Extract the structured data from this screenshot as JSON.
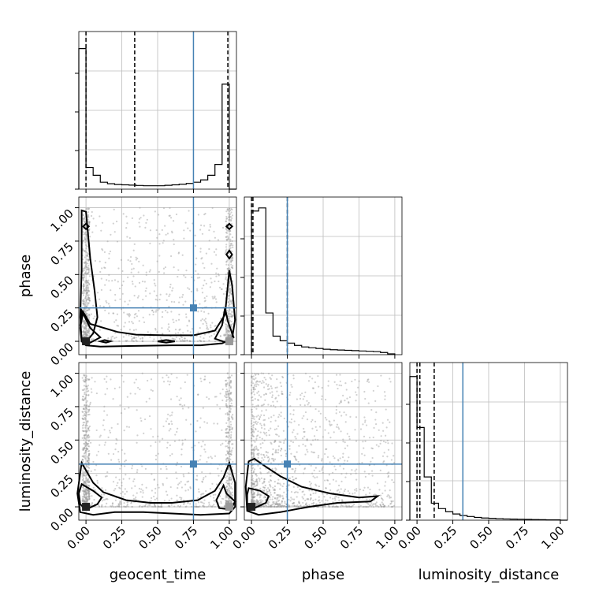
{
  "chart_data": {
    "type": "corner",
    "parameters": [
      "geocent_time",
      "phase",
      "luminosity_distance"
    ],
    "injection_color": "#4682b4",
    "truths": {
      "geocent_time": 0.75,
      "phase": 0.25,
      "luminosity_distance": 0.32
    },
    "tick_values": [
      0.0,
      0.25,
      0.5,
      0.75,
      1.0
    ],
    "tick_labels": [
      "0.00",
      "0.25",
      "0.50",
      "0.75",
      "1.00"
    ],
    "xlim": [
      -0.05,
      1.05
    ],
    "grid": true,
    "diagonal": [
      {
        "param": "geocent_time",
        "hist_edges": [
          -0.05,
          0.0,
          0.05,
          0.1,
          0.15,
          0.2,
          0.25,
          0.3,
          0.35,
          0.4,
          0.45,
          0.5,
          0.55,
          0.6,
          0.65,
          0.7,
          0.75,
          0.8,
          0.85,
          0.9,
          0.95,
          1.0,
          1.05
        ],
        "hist_counts": [
          0.91,
          0.14,
          0.09,
          0.045,
          0.035,
          0.03,
          0.028,
          0.026,
          0.024,
          0.022,
          0.022,
          0.022,
          0.025,
          0.028,
          0.032,
          0.037,
          0.045,
          0.06,
          0.09,
          0.16,
          0.68,
          0.0
        ],
        "ylim": [
          0,
          1.0
        ],
        "quantiles": [
          0.0,
          0.34,
          0.99
        ]
      },
      {
        "param": "phase",
        "hist_edges": [
          0.0,
          0.05,
          0.1,
          0.15,
          0.2,
          0.25,
          0.3,
          0.35,
          0.4,
          0.45,
          0.5,
          0.55,
          0.6,
          0.65,
          0.7,
          0.75,
          0.8,
          0.85,
          0.9,
          0.95,
          1.0
        ],
        "hist_counts": [
          0.93,
          0.95,
          0.27,
          0.12,
          0.09,
          0.075,
          0.06,
          0.05,
          0.045,
          0.04,
          0.035,
          0.032,
          0.03,
          0.028,
          0.026,
          0.024,
          0.022,
          0.02,
          0.014,
          0.005
        ],
        "ylim": [
          0,
          1.0
        ],
        "quantiles": [
          0.0,
          0.01,
          0.25
        ]
      },
      {
        "param": "luminosity_distance",
        "hist_edges": [
          -0.05,
          0.0,
          0.05,
          0.1,
          0.15,
          0.2,
          0.25,
          0.3,
          0.35,
          0.4,
          0.45,
          0.5,
          0.55,
          0.6,
          0.65,
          0.7,
          0.75,
          0.8,
          0.85,
          0.9,
          0.95,
          1.0,
          1.05
        ],
        "hist_counts": [
          0.93,
          0.6,
          0.28,
          0.11,
          0.075,
          0.055,
          0.04,
          0.03,
          0.024,
          0.018,
          0.014,
          0.012,
          0.01,
          0.008,
          0.007,
          0.006,
          0.005,
          0.004,
          0.003,
          0.002,
          0.002,
          0.0
        ],
        "ylim": [
          0,
          1.0
        ],
        "quantiles": [
          0.0,
          0.02,
          0.12
        ]
      }
    ],
    "scatter_panels": [
      {
        "x": "geocent_time",
        "y": "phase",
        "ylim": [
          -0.1,
          1.08
        ],
        "markers": [
          {
            "x": 0.0,
            "y": 0.0,
            "color": "#222222"
          },
          {
            "x": 1.0,
            "y": 0.0,
            "color": "#999999"
          }
        ],
        "contours": [
          [
            [
              -0.03,
              0.98
            ],
            [
              0.0,
              0.97
            ],
            [
              0.03,
              0.62
            ],
            [
              0.06,
              0.38
            ],
            [
              0.08,
              0.18
            ],
            [
              0.05,
              0.06
            ],
            [
              0.02,
              0.02
            ],
            [
              -0.03,
              0.01
            ],
            [
              -0.04,
              0.18
            ],
            [
              -0.03,
              0.54
            ],
            [
              -0.03,
              0.98
            ]
          ],
          [
            [
              -0.02,
              0.22
            ],
            [
              0.03,
              0.13
            ],
            [
              0.22,
              0.07
            ],
            [
              0.35,
              0.05
            ],
            [
              0.55,
              0.045
            ],
            [
              0.75,
              0.045
            ],
            [
              0.9,
              0.08
            ],
            [
              0.97,
              0.2
            ],
            [
              0.99,
              0.42
            ],
            [
              1.0,
              0.53
            ],
            [
              1.02,
              0.42
            ],
            [
              1.04,
              0.16
            ],
            [
              1.02,
              0.02
            ],
            [
              0.95,
              -0.015
            ],
            [
              0.8,
              -0.03
            ],
            [
              0.6,
              -0.03
            ],
            [
              0.3,
              -0.035
            ],
            [
              0.1,
              -0.04
            ],
            [
              0.0,
              -0.03
            ],
            [
              -0.03,
              0.0
            ],
            [
              -0.04,
              0.1
            ],
            [
              -0.02,
              0.22
            ]
          ],
          [
            [
              -0.03,
              0.23
            ],
            [
              0.03,
              0.1
            ],
            [
              0.1,
              0.03
            ],
            [
              0.03,
              -0.01
            ],
            [
              -0.03,
              0.02
            ],
            [
              -0.04,
              0.12
            ],
            [
              -0.03,
              0.23
            ]
          ],
          [
            [
              0.97,
              0.25
            ],
            [
              0.99,
              0.15
            ],
            [
              1.03,
              0.03
            ],
            [
              0.98,
              -0.01
            ],
            [
              0.9,
              0.02
            ],
            [
              0.95,
              0.12
            ],
            [
              0.97,
              0.25
            ]
          ],
          [
            [
              -0.02,
              0.86
            ],
            [
              0.0,
              0.84
            ],
            [
              0.02,
              0.86
            ],
            [
              0.0,
              0.88
            ],
            [
              -0.02,
              0.86
            ]
          ],
          [
            [
              0.98,
              0.86
            ],
            [
              1.0,
              0.84
            ],
            [
              1.02,
              0.86
            ],
            [
              1.0,
              0.88
            ],
            [
              0.98,
              0.86
            ]
          ],
          [
            [
              0.98,
              0.65
            ],
            [
              1.0,
              0.62
            ],
            [
              1.02,
              0.65
            ],
            [
              1.0,
              0.68
            ],
            [
              0.98,
              0.65
            ]
          ],
          [
            [
              0.1,
              0.0
            ],
            [
              0.14,
              -0.01
            ],
            [
              0.17,
              0.0
            ],
            [
              0.13,
              0.01
            ],
            [
              0.1,
              0.0
            ]
          ],
          [
            [
              0.5,
              0.0
            ],
            [
              0.56,
              -0.01
            ],
            [
              0.62,
              0.0
            ],
            [
              0.56,
              0.01
            ],
            [
              0.5,
              0.0
            ]
          ]
        ]
      },
      {
        "x": "geocent_time",
        "y": "luminosity_distance",
        "ylim": [
          -0.1,
          1.08
        ],
        "markers": [
          {
            "x": 0.0,
            "y": 0.0,
            "color": "#222222"
          },
          {
            "x": 1.0,
            "y": 0.0,
            "color": "#999999"
          }
        ],
        "contours": [
          [
            [
              -0.03,
              0.33
            ],
            [
              0.05,
              0.18
            ],
            [
              0.12,
              0.11
            ],
            [
              0.28,
              0.05
            ],
            [
              0.45,
              0.03
            ],
            [
              0.6,
              0.03
            ],
            [
              0.78,
              0.05
            ],
            [
              0.9,
              0.12
            ],
            [
              0.96,
              0.22
            ],
            [
              1.0,
              0.33
            ],
            [
              1.04,
              0.18
            ],
            [
              1.04,
              0.0
            ],
            [
              1.0,
              -0.05
            ],
            [
              0.8,
              -0.06
            ],
            [
              0.6,
              -0.05
            ],
            [
              0.4,
              -0.04
            ],
            [
              0.2,
              -0.04
            ],
            [
              0.05,
              -0.06
            ],
            [
              -0.04,
              -0.04
            ],
            [
              -0.06,
              0.1
            ],
            [
              -0.03,
              0.33
            ]
          ],
          [
            [
              -0.03,
              0.17
            ],
            [
              0.05,
              0.12
            ],
            [
              0.11,
              0.07
            ],
            [
              0.08,
              0.02
            ],
            [
              0.0,
              -0.02
            ],
            [
              -0.04,
              0.02
            ],
            [
              -0.05,
              0.1
            ],
            [
              -0.03,
              0.17
            ]
          ],
          [
            [
              0.96,
              0.16
            ],
            [
              0.98,
              0.1
            ],
            [
              1.04,
              0.04
            ],
            [
              1.01,
              -0.02
            ],
            [
              0.93,
              -0.01
            ],
            [
              0.91,
              0.05
            ],
            [
              0.96,
              0.16
            ]
          ]
        ]
      },
      {
        "x": "phase",
        "y": "luminosity_distance",
        "ylim": [
          -0.1,
          1.08
        ],
        "markers": [
          {
            "x": 0.0,
            "y": 0.0,
            "color": "#222222"
          }
        ],
        "contours": [
          [
            [
              -0.02,
              0.34
            ],
            [
              0.02,
              0.36
            ],
            [
              0.1,
              0.3
            ],
            [
              0.2,
              0.23
            ],
            [
              0.35,
              0.15
            ],
            [
              0.55,
              0.1
            ],
            [
              0.75,
              0.07
            ],
            [
              0.88,
              0.08
            ],
            [
              0.83,
              0.04
            ],
            [
              0.6,
              0.03
            ],
            [
              0.4,
              0.0
            ],
            [
              0.2,
              -0.04
            ],
            [
              0.05,
              -0.06
            ],
            [
              -0.03,
              -0.03
            ],
            [
              -0.04,
              0.15
            ],
            [
              -0.02,
              0.34
            ]
          ],
          [
            [
              -0.02,
              0.14
            ],
            [
              0.06,
              0.12
            ],
            [
              0.12,
              0.08
            ],
            [
              0.1,
              0.03
            ],
            [
              0.02,
              -0.01
            ],
            [
              -0.03,
              0.02
            ],
            [
              -0.03,
              0.09
            ],
            [
              -0.02,
              0.14
            ]
          ]
        ]
      }
    ]
  }
}
